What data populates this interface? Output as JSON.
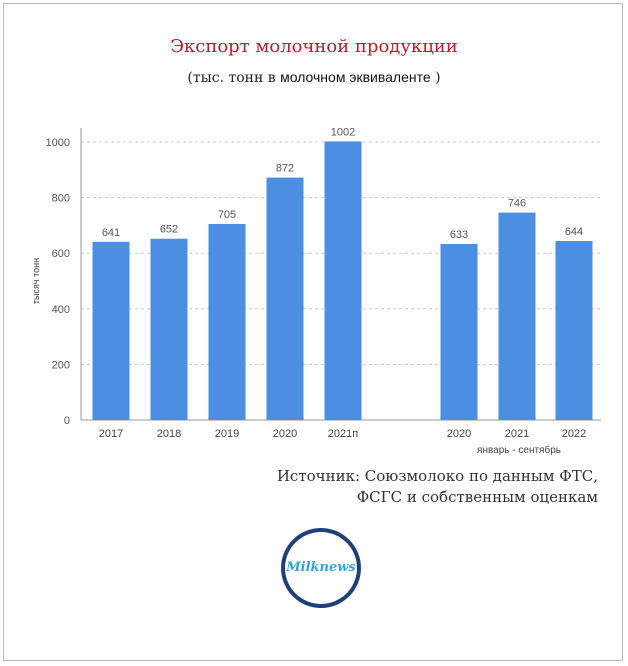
{
  "header": {
    "title": "Экспорт молочной продукции",
    "subtitle_pre": "(тыс. тонн в ",
    "subtitle_bold": "молочном эквиваленте",
    "subtitle_post": " )"
  },
  "source": {
    "line1": "Источник: Союзмолоко по данным ФТС,",
    "line2": "ФСГС и собственным оценкам"
  },
  "logo": {
    "text": "Milknews"
  },
  "colors": {
    "bar": "#4a8fe2",
    "title": "#c0192c",
    "logo_ring": "#1f3f7a",
    "logo_text": "#2aa7dd"
  },
  "chart_data": {
    "type": "bar",
    "title": "Экспорт молочной продукции",
    "ylabel": "тысяч тонн",
    "ylim": [
      0,
      1000
    ],
    "yticks": [
      0,
      200,
      400,
      600,
      800,
      1000
    ],
    "grid": true,
    "categories": [
      "2017",
      "2018",
      "2019",
      "2020",
      "2021п",
      "2020",
      "2021",
      "2022"
    ],
    "values": [
      641,
      652,
      705,
      872,
      1002,
      633,
      746,
      644
    ],
    "group_label": "январь - сентябрь"
  }
}
